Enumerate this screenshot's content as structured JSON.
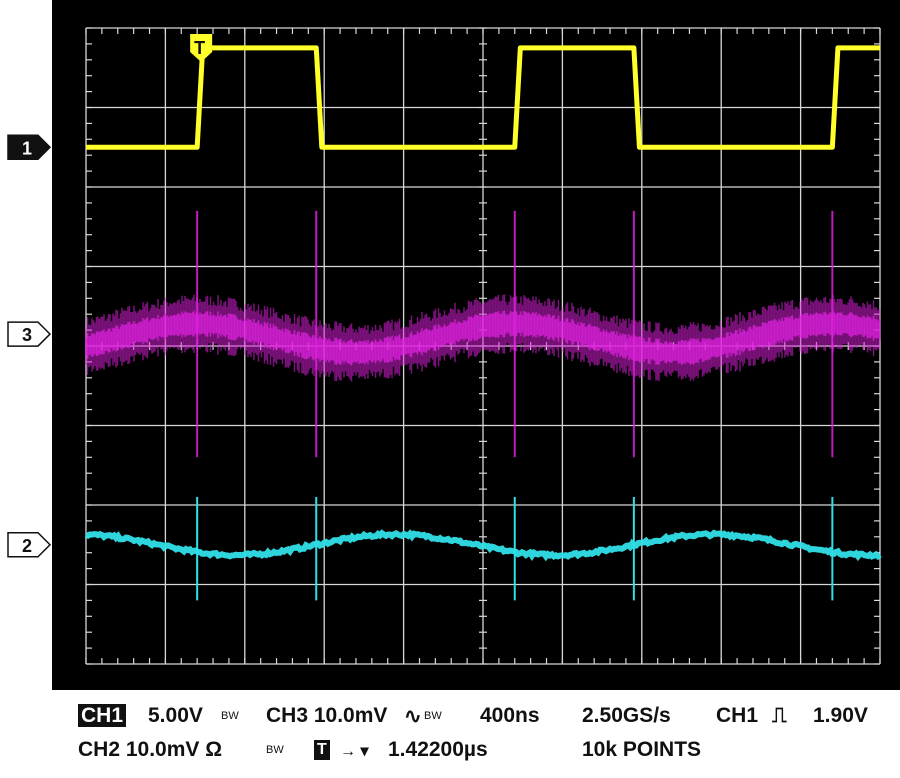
{
  "colors": {
    "background": "#000000",
    "graticule": "#d8d8d8",
    "ch1": "#ffff2a",
    "ch3": "#e020e0",
    "ch2": "#30e0e8"
  },
  "markers": {
    "ch1": "1",
    "ch3": "3",
    "ch2": "2",
    "trigger": "T"
  },
  "status": {
    "line1": {
      "ch1_tag": "CH1",
      "ch1_scale": "5.00V",
      "ch1_bw": "BW",
      "ch3": "CH3 10.0mV",
      "ch3_coupling": "∿",
      "ch3_bw": "BW",
      "timebase": "400ns",
      "sample_rate": "2.50GS/s",
      "trigger_src": "CH1",
      "trigger_edge": "⎍",
      "trigger_level": "1.90V"
    },
    "line2": {
      "ch2": "CH2 10.0mV Ω",
      "ch2_bw": "BW",
      "trig_pos_tag": "T",
      "trig_pos_arrow": "→ ▾",
      "trig_pos_value": "1.42200µs",
      "record": "10k POINTS"
    }
  },
  "chart_data": {
    "type": "line",
    "x_unit": "ns",
    "x_range": [
      0,
      4000
    ],
    "x_div": 400,
    "y_range_div": [
      -4,
      4
    ],
    "series": [
      {
        "channel": "CH1",
        "scale_per_div": "5.00V",
        "offset_div": 2.5,
        "shape": "square",
        "low_div": 0,
        "high_div": 1.25,
        "rising_edges_ns": [
          560,
          2160,
          3760
        ],
        "falling_edges_ns": [
          1160,
          2760
        ]
      },
      {
        "channel": "CH3",
        "scale_per_div": "10.0mV",
        "offset_div": 0.1,
        "shape": "noise band with ripple",
        "ripple_amplitude_div": 0.18,
        "ripple_period_ns": 1600,
        "noise_band_div": 0.6,
        "spikes_ns": [
          560,
          1160,
          2160,
          2760,
          3760
        ]
      },
      {
        "channel": "CH2",
        "scale_per_div": "10.0mV",
        "offset_div": -2.5,
        "shape": "sine ripple",
        "ripple_amplitude_div": 0.13,
        "ripple_period_ns": 1600,
        "spikes_ns": [
          560,
          1160,
          2160,
          2760,
          3760
        ]
      }
    ]
  }
}
